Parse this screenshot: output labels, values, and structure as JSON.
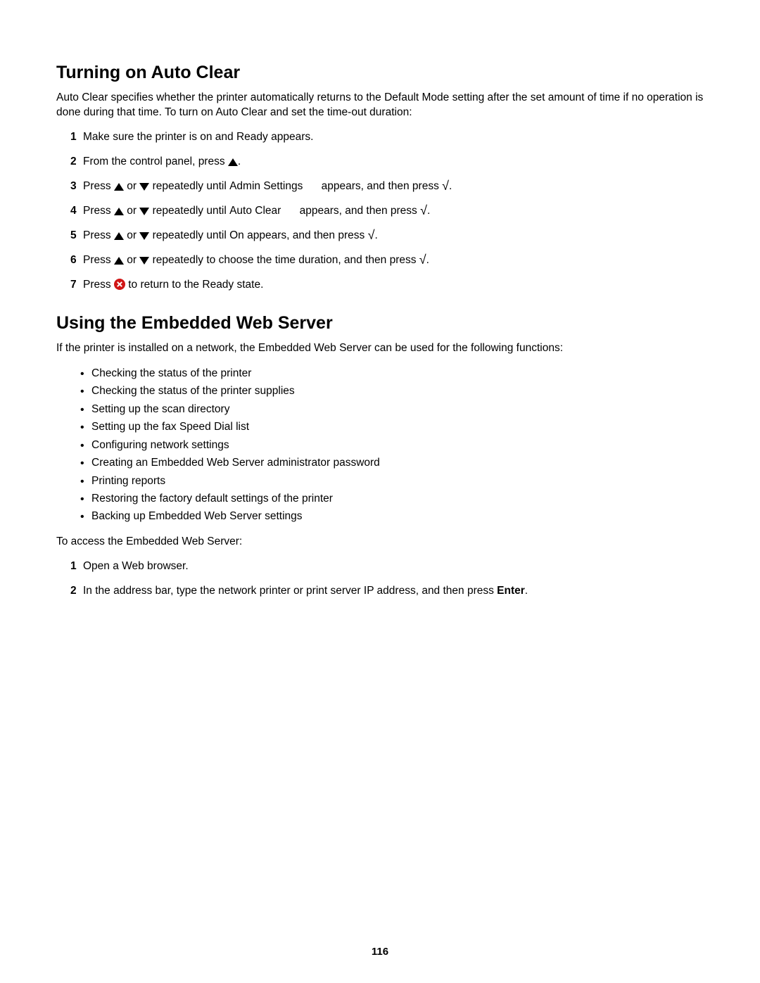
{
  "page_number": "116",
  "section1": {
    "heading": "Turning on Auto Clear",
    "intro": "Auto Clear specifies whether the printer automatically returns to the Default Mode setting after the set amount of time if no operation is done during that time. To turn on Auto Clear and set the time-out duration:",
    "steps": {
      "s1": {
        "num": "1",
        "a": "Make sure the printer is on and ",
        "ready": "Ready",
        "b": " appears."
      },
      "s2": {
        "num": "2",
        "a": "From the control panel, press ",
        "b": "."
      },
      "s3": {
        "num": "3",
        "a": "Press ",
        "or": " or ",
        "b": " repeatedly until ",
        "menu": "Admin Settings",
        "c": " appears, and then press ",
        "d": "."
      },
      "s4": {
        "num": "4",
        "a": "Press ",
        "or": " or ",
        "b": " repeatedly until ",
        "menu": "Auto Clear",
        "c": " appears, and then press ",
        "d": "."
      },
      "s5": {
        "num": "5",
        "a": "Press ",
        "or": " or ",
        "b": " repeatedly until ",
        "on": "On",
        "c": " appears, and then press ",
        "d": "."
      },
      "s6": {
        "num": "6",
        "a": "Press ",
        "or": " or ",
        "b": " repeatedly to choose the time duration, and then press ",
        "d": "."
      },
      "s7": {
        "num": "7",
        "a": "Press ",
        "b": " to return to the ",
        "ready": "Ready",
        "c": " state."
      }
    }
  },
  "section2": {
    "heading": "Using the Embedded Web Server",
    "intro": "If the printer is installed on a network, the Embedded Web Server can be used for the following functions:",
    "bullets": [
      "Checking the status of the printer",
      "Checking the status of the printer supplies",
      "Setting up the scan directory",
      "Setting up the fax Speed Dial list",
      "Configuring network settings",
      "Creating an Embedded Web Server administrator password",
      "Printing reports",
      "Restoring the factory default settings of the printer",
      "Backing up Embedded Web Server settings"
    ],
    "access_intro": "To access the Embedded Web Server:",
    "access_steps": {
      "a1": {
        "num": "1",
        "text": "Open a Web browser."
      },
      "a2": {
        "num": "2",
        "a": "In the address bar, type the network printer or print server IP address, and then press ",
        "enter": "Enter",
        "b": "."
      }
    }
  }
}
